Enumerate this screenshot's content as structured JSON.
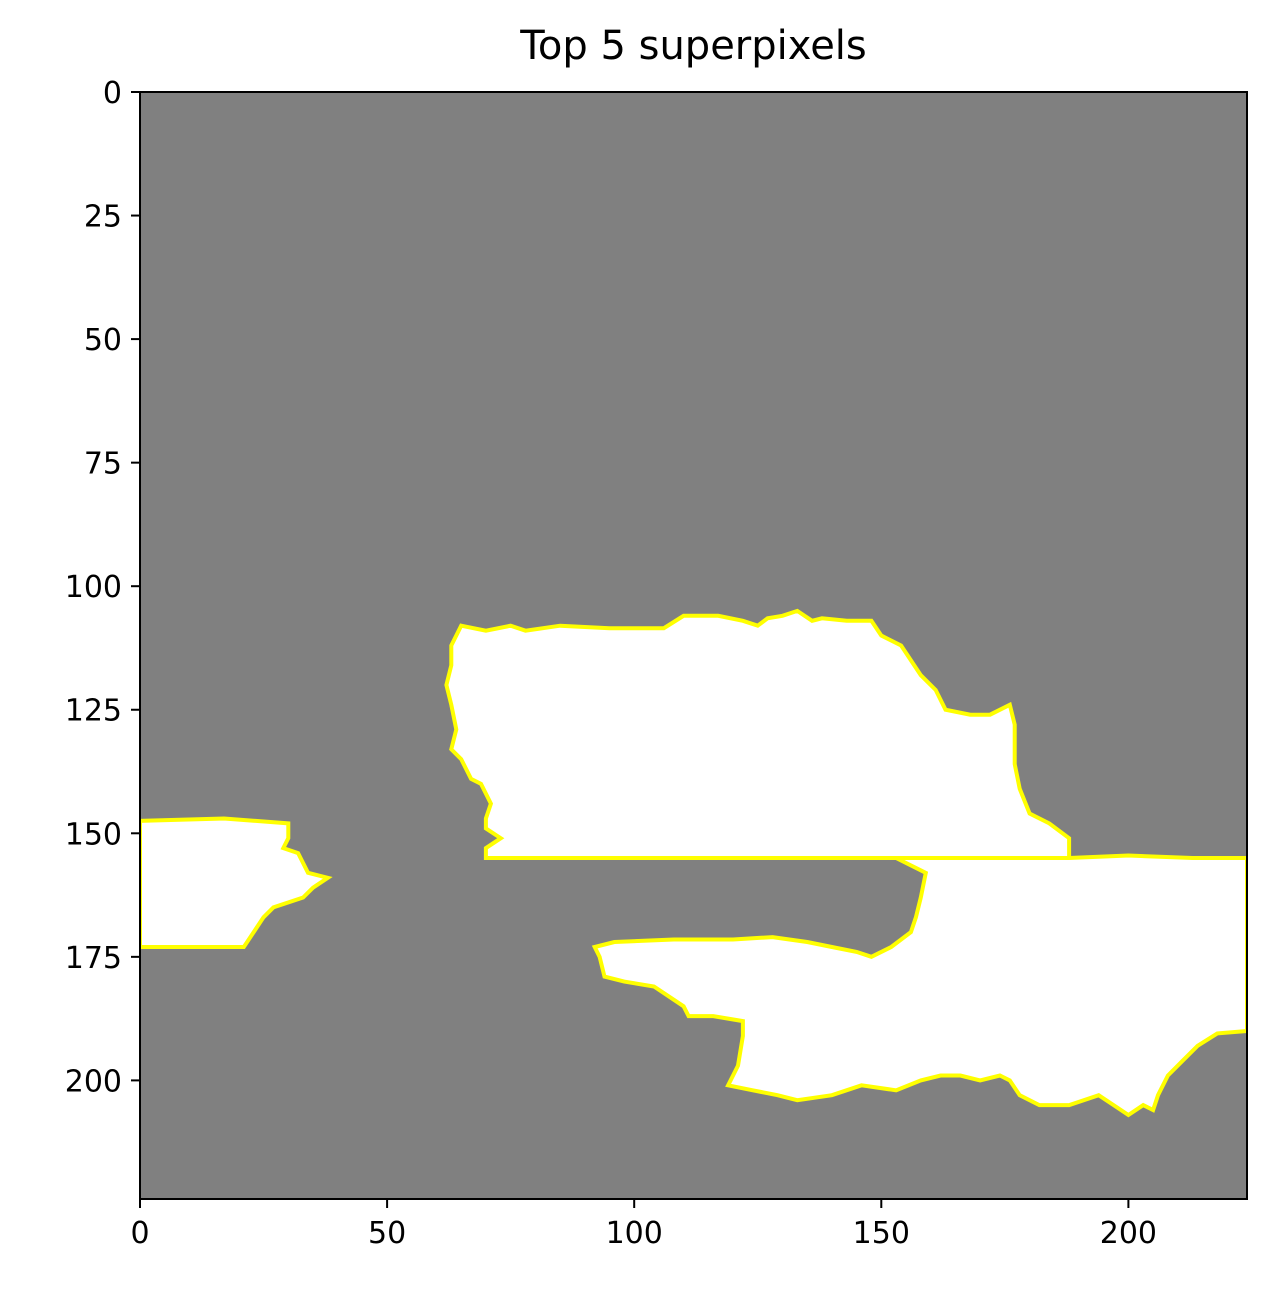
{
  "chart_data": {
    "type": "heatmap",
    "title": "Top 5 superpixels",
    "xlabel": "",
    "ylabel": "",
    "xlim": [
      0,
      224
    ],
    "ylim": [
      224,
      0
    ],
    "x_ticks": [
      "0",
      "50",
      "100",
      "150",
      "200"
    ],
    "y_ticks": [
      "0",
      "25",
      "50",
      "75",
      "100",
      "125",
      "150",
      "175",
      "200"
    ],
    "grid": false,
    "legend": "none",
    "colors": {
      "background": "#808080",
      "mask": "#ffffff",
      "boundary": "#ffff00"
    },
    "regions": [
      {
        "name": "left region",
        "polygon": [
          [
            0,
            147.5
          ],
          [
            17,
            147
          ],
          [
            30,
            148
          ],
          [
            30,
            151
          ],
          [
            29,
            153
          ],
          [
            32,
            154
          ],
          [
            34,
            158
          ],
          [
            38,
            159
          ],
          [
            35,
            161
          ],
          [
            33,
            163
          ],
          [
            27,
            165
          ],
          [
            25,
            167
          ],
          [
            23,
            170
          ],
          [
            21,
            173
          ],
          [
            0,
            173
          ]
        ]
      },
      {
        "name": "upper region",
        "polygon": [
          [
            65,
            108
          ],
          [
            70,
            109
          ],
          [
            75,
            108
          ],
          [
            78,
            109
          ],
          [
            85,
            108
          ],
          [
            95,
            108.5
          ],
          [
            106,
            108.5
          ],
          [
            110,
            106
          ],
          [
            117,
            106
          ],
          [
            122,
            107
          ],
          [
            125,
            108
          ],
          [
            127,
            106.5
          ],
          [
            130,
            106
          ],
          [
            133,
            105
          ],
          [
            136,
            107
          ],
          [
            138,
            106.5
          ],
          [
            143,
            107
          ],
          [
            148,
            107
          ],
          [
            150,
            110
          ],
          [
            154,
            112
          ],
          [
            158,
            118
          ],
          [
            161,
            121
          ],
          [
            163,
            125
          ],
          [
            168,
            126
          ],
          [
            172,
            126
          ],
          [
            176,
            124
          ],
          [
            177,
            128
          ],
          [
            177,
            136
          ],
          [
            178,
            141
          ],
          [
            180,
            146
          ],
          [
            184,
            148
          ],
          [
            188,
            151
          ],
          [
            188,
            155
          ],
          [
            153,
            155
          ],
          [
            70,
            155
          ],
          [
            70,
            153
          ],
          [
            73,
            151
          ],
          [
            70,
            149
          ],
          [
            70,
            147
          ],
          [
            71,
            144
          ],
          [
            69,
            140
          ],
          [
            67,
            139
          ],
          [
            65,
            135
          ],
          [
            63,
            133
          ],
          [
            64,
            129
          ],
          [
            63,
            124
          ],
          [
            62,
            120
          ],
          [
            63,
            116
          ],
          [
            63,
            112
          ]
        ]
      },
      {
        "name": "lower region",
        "polygon": [
          [
            153,
            155
          ],
          [
            188,
            155
          ],
          [
            200,
            154.5
          ],
          [
            213,
            155
          ],
          [
            224,
            155
          ],
          [
            224,
            190
          ],
          [
            218,
            190.5
          ],
          [
            214,
            193
          ],
          [
            211,
            196
          ],
          [
            208,
            199
          ],
          [
            206,
            203
          ],
          [
            205,
            206
          ],
          [
            203,
            205
          ],
          [
            200,
            207
          ],
          [
            197,
            205
          ],
          [
            194,
            203
          ],
          [
            188,
            205
          ],
          [
            182,
            205
          ],
          [
            178,
            203
          ],
          [
            176,
            200
          ],
          [
            174,
            199
          ],
          [
            170,
            200
          ],
          [
            166,
            199
          ],
          [
            162,
            199
          ],
          [
            158,
            200
          ],
          [
            153,
            202
          ],
          [
            146,
            201
          ],
          [
            140,
            203
          ],
          [
            133,
            204
          ],
          [
            129,
            203
          ],
          [
            124,
            202
          ],
          [
            119,
            201
          ],
          [
            121,
            197
          ],
          [
            122,
            191
          ],
          [
            122,
            188
          ],
          [
            116,
            187
          ],
          [
            111,
            187
          ],
          [
            110,
            185
          ],
          [
            104,
            181
          ],
          [
            98,
            180
          ],
          [
            94,
            179
          ],
          [
            93,
            175
          ],
          [
            92,
            173
          ],
          [
            96,
            172
          ],
          [
            108,
            171.5
          ],
          [
            120,
            171.5
          ],
          [
            128,
            171
          ],
          [
            135,
            172
          ],
          [
            140,
            173
          ],
          [
            145,
            174
          ],
          [
            148,
            175
          ],
          [
            152,
            173
          ],
          [
            156,
            170
          ],
          [
            157,
            167
          ],
          [
            158,
            163
          ],
          [
            159,
            158
          ]
        ]
      }
    ]
  }
}
